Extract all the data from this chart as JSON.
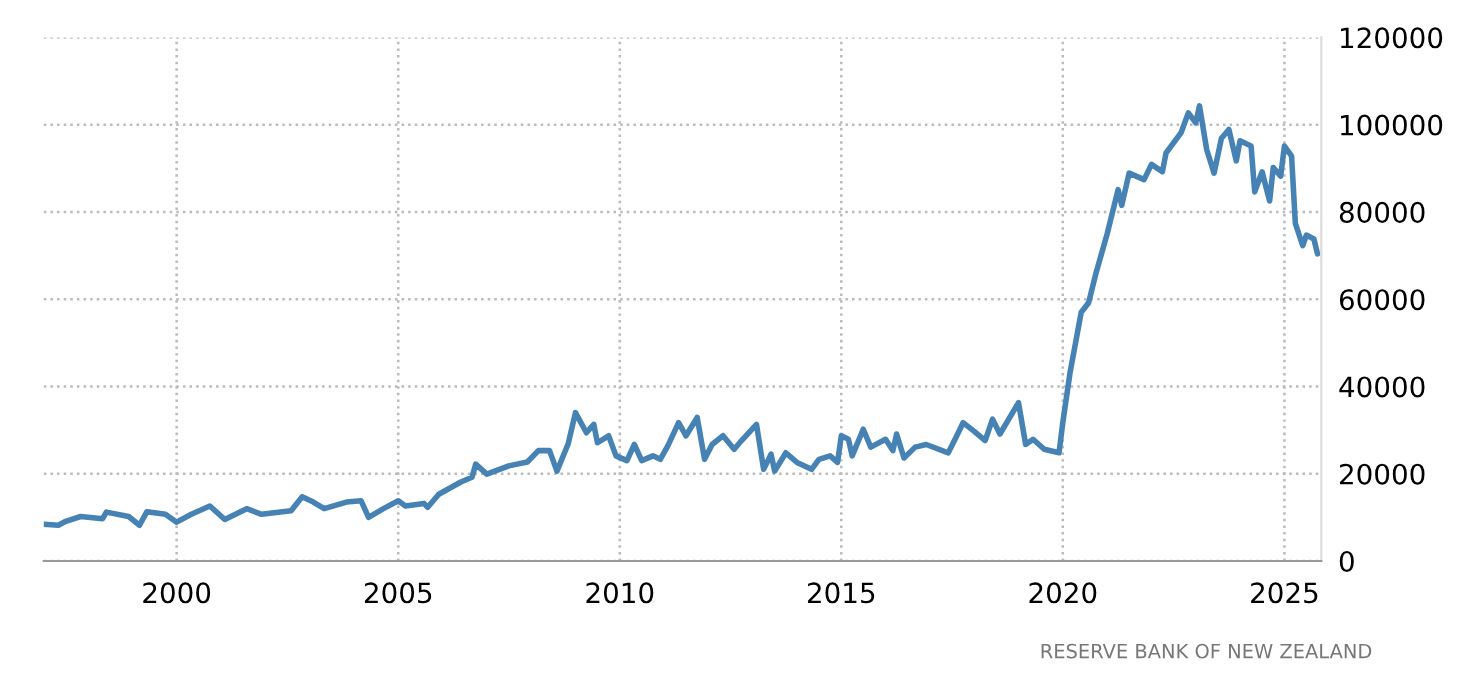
{
  "chart_data": {
    "type": "line",
    "x": [
      "1997-01",
      "1997-05",
      "1997-07",
      "1997-11",
      "1998-05",
      "1998-06",
      "1998-12",
      "1999-03",
      "1999-05",
      "1999-10",
      "2000-01",
      "2000-05",
      "2000-10",
      "2001-02",
      "2001-08",
      "2001-12",
      "2002-08",
      "2002-11",
      "2003-02",
      "2003-05",
      "2003-11",
      "2004-03",
      "2004-05",
      "2004-09",
      "2005-01",
      "2005-03",
      "2005-08",
      "2005-09",
      "2005-12",
      "2006-06",
      "2006-09",
      "2006-10",
      "2007-01",
      "2007-07",
      "2007-12",
      "2008-03",
      "2008-06",
      "2008-08",
      "2008-11",
      "2009-01",
      "2009-04",
      "2009-06",
      "2009-07",
      "2009-10",
      "2009-12",
      "2010-03",
      "2010-05",
      "2010-07",
      "2010-10",
      "2010-12",
      "2011-02",
      "2011-05",
      "2011-07",
      "2011-10",
      "2011-12",
      "2012-02",
      "2012-05",
      "2012-08",
      "2012-10",
      "2013-02",
      "2013-04",
      "2013-06",
      "2013-07",
      "2013-10",
      "2014-01",
      "2014-05",
      "2014-07",
      "2014-10",
      "2014-12",
      "2015-01",
      "2015-03",
      "2015-04",
      "2015-07",
      "2015-09",
      "2016-01",
      "2016-03",
      "2016-04",
      "2016-06",
      "2016-09",
      "2016-12",
      "2017-06",
      "2017-08",
      "2017-10",
      "2018-01",
      "2018-04",
      "2018-06",
      "2018-08",
      "2019-01",
      "2019-03",
      "2019-05",
      "2019-08",
      "2019-12",
      "2020-01",
      "2020-03",
      "2020-06",
      "2020-08",
      "2020-10",
      "2021-01",
      "2021-04",
      "2021-05",
      "2021-07",
      "2021-11",
      "2022-01",
      "2022-04",
      "2022-05",
      "2022-09",
      "2022-11",
      "2023-01",
      "2023-02",
      "2023-04",
      "2023-06",
      "2023-08",
      "2023-10",
      "2023-12",
      "2024-01",
      "2024-04",
      "2024-05",
      "2024-07",
      "2024-09",
      "2024-10",
      "2024-12",
      "2025-01",
      "2025-03",
      "2025-04",
      "2025-06",
      "2025-07",
      "2025-09",
      "2025-10"
    ],
    "series": [
      {
        "color": "#4682b4",
        "values": [
          8400,
          8200,
          9100,
          10200,
          9700,
          11200,
          10200,
          8200,
          11300,
          10700,
          8900,
          10700,
          12600,
          9500,
          12000,
          10700,
          11500,
          14700,
          13500,
          12000,
          13500,
          13800,
          10000,
          12000,
          13800,
          12600,
          13200,
          12300,
          15300,
          18100,
          19200,
          22200,
          19900,
          21800,
          22700,
          25300,
          25300,
          20600,
          26800,
          34000,
          29400,
          31300,
          27100,
          28700,
          24100,
          23000,
          26700,
          23000,
          24100,
          23300,
          26400,
          31700,
          28700,
          32900,
          23300,
          26700,
          28700,
          25600,
          27600,
          31300,
          21000,
          24500,
          20600,
          24800,
          22600,
          21000,
          23300,
          24100,
          22600,
          28700,
          27900,
          24100,
          30200,
          26100,
          27900,
          25300,
          29100,
          23600,
          26100,
          26700,
          24800,
          28200,
          31700,
          29700,
          27600,
          32500,
          29100,
          36300,
          26700,
          27900,
          25600,
          24800,
          31700,
          43200,
          57000,
          59200,
          66000,
          75000,
          85100,
          81500,
          88900,
          87400,
          90900,
          89200,
          93500,
          98100,
          102700,
          100400,
          104300,
          94300,
          88900,
          96900,
          98900,
          91700,
          96300,
          95100,
          84600,
          89200,
          82500,
          90200,
          88200,
          95100,
          92800,
          77400,
          72300,
          74700,
          73800,
          70400
        ]
      }
    ],
    "xlim": [
      "1997-01",
      "2025-11"
    ],
    "xticks": [
      {
        "value": "2000-01",
        "label": "2000"
      },
      {
        "value": "2005-01",
        "label": "2005"
      },
      {
        "value": "2010-01",
        "label": "2010"
      },
      {
        "value": "2015-01",
        "label": "2015"
      },
      {
        "value": "2020-01",
        "label": "2020"
      },
      {
        "value": "2025-01",
        "label": "2025"
      }
    ],
    "ylim": [
      0,
      120000
    ],
    "yticks": [
      0,
      20000,
      40000,
      60000,
      80000,
      100000,
      120000
    ],
    "grid": true,
    "legend": false,
    "line_style": "solid",
    "annotations": [
      "RESERVE BANK OF NEW ZEALAND"
    ]
  }
}
